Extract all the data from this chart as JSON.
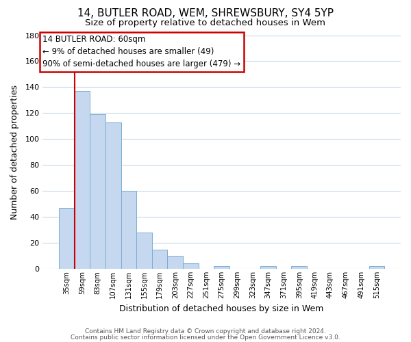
{
  "title": "14, BUTLER ROAD, WEM, SHREWSBURY, SY4 5YP",
  "subtitle": "Size of property relative to detached houses in Wem",
  "xlabel": "Distribution of detached houses by size in Wem",
  "ylabel": "Number of detached properties",
  "bar_color": "#c5d8ef",
  "bar_edge_color": "#7aaed0",
  "bin_labels": [
    "35sqm",
    "59sqm",
    "83sqm",
    "107sqm",
    "131sqm",
    "155sqm",
    "179sqm",
    "203sqm",
    "227sqm",
    "251sqm",
    "275sqm",
    "299sqm",
    "323sqm",
    "347sqm",
    "371sqm",
    "395sqm",
    "419sqm",
    "443sqm",
    "467sqm",
    "491sqm",
    "515sqm"
  ],
  "bar_heights": [
    47,
    137,
    119,
    113,
    60,
    28,
    15,
    10,
    4,
    0,
    2,
    0,
    0,
    2,
    0,
    2,
    0,
    0,
    0,
    0,
    2
  ],
  "ylim": [
    0,
    180
  ],
  "yticks": [
    0,
    20,
    40,
    60,
    80,
    100,
    120,
    140,
    160,
    180
  ],
  "vline_color": "#cc0000",
  "annotation_text": "14 BUTLER ROAD: 60sqm\n← 9% of detached houses are smaller (49)\n90% of semi-detached houses are larger (479) →",
  "annotation_box_color": "#ffffff",
  "annotation_box_edge": "#cc0000",
  "footer_line1": "Contains HM Land Registry data © Crown copyright and database right 2024.",
  "footer_line2": "Contains public sector information licensed under the Open Government Licence v3.0.",
  "background_color": "#ffffff",
  "grid_color": "#c8d8e8"
}
